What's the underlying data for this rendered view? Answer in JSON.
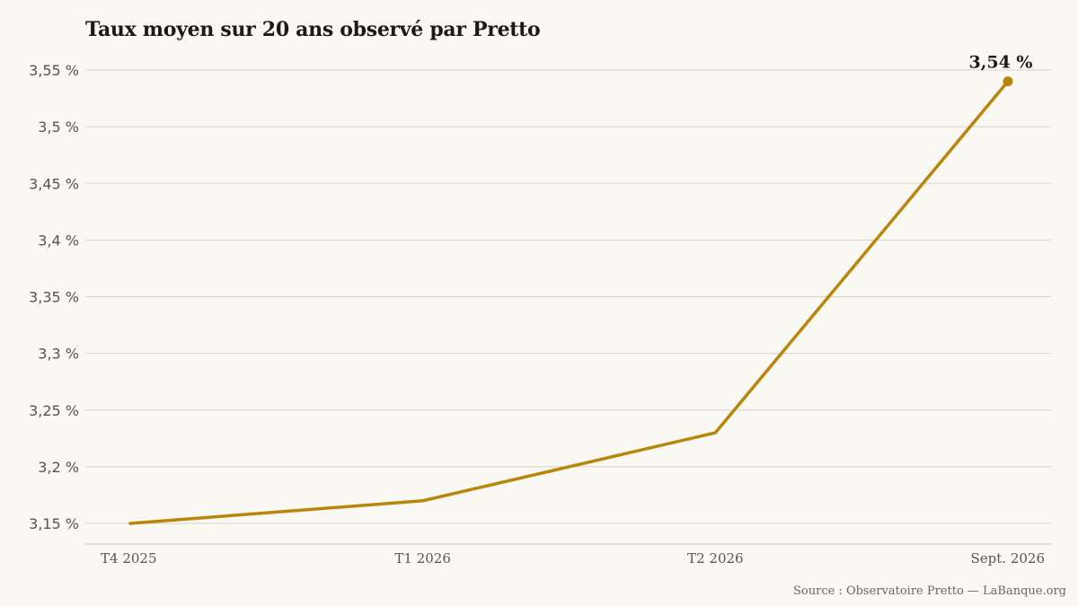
{
  "chart_data": {
    "type": "line",
    "title": "Taux moyen sur 20 ans observé par Pretto",
    "xlabel": "",
    "ylabel": "",
    "categories": [
      "T4 2025",
      "T1 2026",
      "T2 2026",
      "Sept. 2026"
    ],
    "series": [
      {
        "values": [
          3.15,
          3.17,
          3.23,
          3.54
        ],
        "color": "#b8860b"
      }
    ],
    "ylim": [
      3.15,
      3.55
    ],
    "yticks": [
      3.15,
      3.2,
      3.25,
      3.3,
      3.35,
      3.4,
      3.45,
      3.5,
      3.55
    ],
    "ytick_labels": [
      "3,15 %",
      "3,2 %",
      "3,25 %",
      "3,3 %",
      "3,35 %",
      "3,4 %",
      "3,45 %",
      "3,5 %",
      "3,55 %"
    ],
    "grid": true,
    "legend": "none",
    "annotations": [
      {
        "category": "Sept. 2026",
        "value": 3.54,
        "text": "3,54 %"
      }
    ]
  },
  "footer": {
    "source": "Source : Observatoire Pretto — LaBanque.org"
  },
  "colors": {
    "background": "#faf8f2",
    "line": "#b8860b",
    "grid": "#d9d3c4",
    "axis": "#c8c2b2"
  }
}
